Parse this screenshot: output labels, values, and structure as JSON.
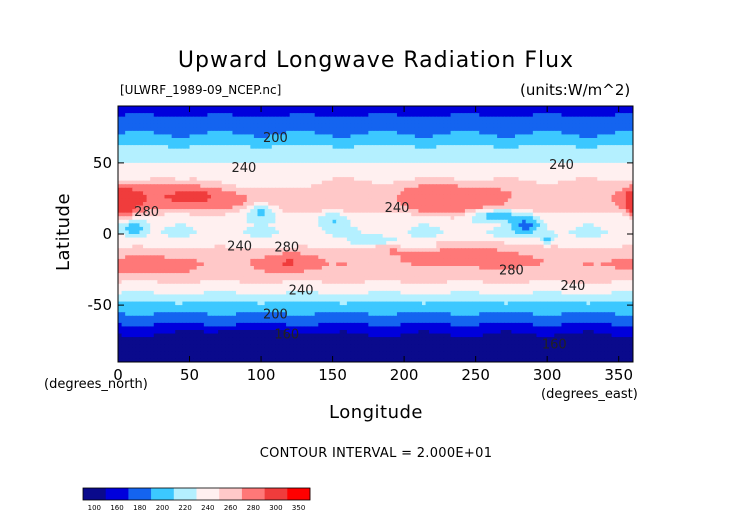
{
  "chart_data": {
    "type": "heatmap",
    "title": "Upward Longwave Radiation Flux",
    "subtitle_left": "[ULWRF_1989-09_NCEP.nc]",
    "subtitle_right": "(units:W/m^2)",
    "xlabel": "Longitude",
    "ylabel": "Latitude",
    "x_units_note": "(degrees_east)",
    "y_units_note": "(degrees_north)",
    "xlim": [
      0,
      360
    ],
    "ylim": [
      -90,
      90
    ],
    "x_ticks": [
      0,
      50,
      100,
      150,
      200,
      250,
      300,
      350
    ],
    "y_ticks": [
      -50,
      0,
      50
    ],
    "contour_interval_text": "CONTOUR INTERVAL = 2.000E+01",
    "contour_labels": [
      {
        "text": "200",
        "lon": 110,
        "lat": 67
      },
      {
        "text": "240",
        "lon": 88,
        "lat": 46
      },
      {
        "text": "240",
        "lon": 310,
        "lat": 48
      },
      {
        "text": "280",
        "lon": 20,
        "lat": 15
      },
      {
        "text": "240",
        "lon": 195,
        "lat": 18
      },
      {
        "text": "240",
        "lon": 85,
        "lat": -9
      },
      {
        "text": "280",
        "lon": 118,
        "lat": -10
      },
      {
        "text": "280",
        "lon": 275,
        "lat": -26
      },
      {
        "text": "240",
        "lon": 128,
        "lat": -40
      },
      {
        "text": "240",
        "lon": 318,
        "lat": -37
      },
      {
        "text": "200",
        "lon": 110,
        "lat": -57
      },
      {
        "text": "160",
        "lon": 118,
        "lat": -71
      },
      {
        "text": "160",
        "lon": 305,
        "lat": -78
      }
    ],
    "levels": [
      100,
      160,
      180,
      200,
      220,
      240,
      260,
      280,
      300,
      350
    ],
    "colors": [
      "#0a0a8c",
      "#0000dc",
      "#1464f0",
      "#3cc8ff",
      "#b4f0ff",
      "#fff0f0",
      "#ffc8c8",
      "#ff7878",
      "#f03c3c",
      "#ff0000"
    ],
    "zonal_profile": [
      {
        "lat": 90,
        "value": 170
      },
      {
        "lat": 80,
        "value": 185
      },
      {
        "lat": 70,
        "value": 200
      },
      {
        "lat": 60,
        "value": 225
      },
      {
        "lat": 50,
        "value": 240
      },
      {
        "lat": 40,
        "value": 255
      },
      {
        "lat": 30,
        "value": 275
      },
      {
        "lat": 20,
        "value": 275
      },
      {
        "lat": 10,
        "value": 245
      },
      {
        "lat": 0,
        "value": 240
      },
      {
        "lat": -10,
        "value": 260
      },
      {
        "lat": -20,
        "value": 280
      },
      {
        "lat": -30,
        "value": 270
      },
      {
        "lat": -40,
        "value": 245
      },
      {
        "lat": -50,
        "value": 215
      },
      {
        "lat": -60,
        "value": 190
      },
      {
        "lat": -70,
        "value": 160
      },
      {
        "lat": -80,
        "value": 150
      },
      {
        "lat": -90,
        "value": 150
      }
    ],
    "anomalies": [
      {
        "lon": 20,
        "lat": 26,
        "rlon": 28,
        "rlat": 9,
        "value": 300
      },
      {
        "lon": 60,
        "lat": 26,
        "rlon": 22,
        "rlat": 9,
        "value": 305
      },
      {
        "lon": 6,
        "lat": 22,
        "rlon": 10,
        "rlat": 10,
        "value": 300
      },
      {
        "lon": 362,
        "lat": 23,
        "rlon": 8,
        "rlat": 8,
        "value": 300
      },
      {
        "lon": 232,
        "lat": 26,
        "rlon": 30,
        "rlat": 9,
        "value": 300
      },
      {
        "lon": 230,
        "lat": 18,
        "rlon": 22,
        "rlat": 6,
        "value": 285
      },
      {
        "lon": 120,
        "lat": -20,
        "rlon": 18,
        "rlat": 6,
        "value": 305
      },
      {
        "lon": 20,
        "lat": -22,
        "rlon": 28,
        "rlat": 6,
        "value": 295
      },
      {
        "lon": 255,
        "lat": -15,
        "rlon": 38,
        "rlat": 8,
        "value": 290
      },
      {
        "lon": 200,
        "lat": -12,
        "rlon": 28,
        "rlat": 6,
        "value": 285
      },
      {
        "lon": 100,
        "lat": 15,
        "rlon": 10,
        "rlat": 6,
        "value": 210
      },
      {
        "lon": 150,
        "lat": 10,
        "rlon": 8,
        "rlat": 5,
        "value": 215
      },
      {
        "lon": 180,
        "lat": -5,
        "rlon": 15,
        "rlat": 3,
        "value": 210
      },
      {
        "lon": 210,
        "lat": -9,
        "rlon": 12,
        "rlat": 3,
        "value": 215
      },
      {
        "lon": 12,
        "lat": 4,
        "rlon": 8,
        "rlat": 5,
        "value": 200
      },
      {
        "lon": 285,
        "lat": 6,
        "rlon": 10,
        "rlat": 6,
        "value": 185
      },
      {
        "lon": 265,
        "lat": 13,
        "rlon": 20,
        "rlat": 4,
        "value": 205
      },
      {
        "lon": 300,
        "lat": -3,
        "rlon": 5,
        "rlat": 4,
        "value": 210
      },
      {
        "lon": 100,
        "lat": 37,
        "rlon": 30,
        "rlat": 7,
        "value": 245
      },
      {
        "lon": 60,
        "lat": 40,
        "rlon": 18,
        "rlat": 6,
        "value": 255
      },
      {
        "lon": 20,
        "lat": 72,
        "rlon": 12,
        "rlat": 4,
        "value": 200
      },
      {
        "lon": 240,
        "lat": 75,
        "rlon": 25,
        "rlat": 4,
        "value": 200
      },
      {
        "lon": 90,
        "lat": -75,
        "rlon": 40,
        "rlat": 6,
        "value": 140
      },
      {
        "lon": 300,
        "lat": -80,
        "rlon": 40,
        "rlat": 6,
        "value": 140
      }
    ]
  },
  "legend": {
    "levels": [
      "100",
      "160",
      "180",
      "200",
      "220",
      "240",
      "260",
      "280",
      "300",
      "350"
    ]
  }
}
